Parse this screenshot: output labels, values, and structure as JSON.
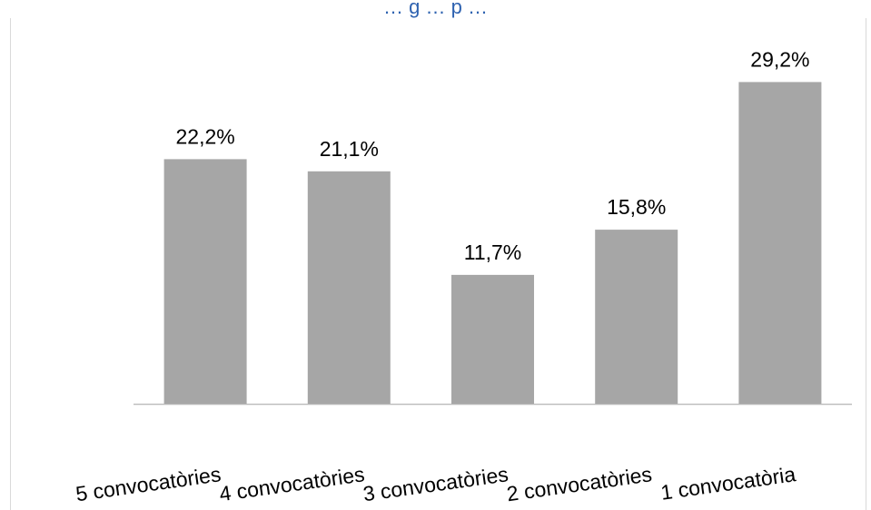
{
  "chart_data": {
    "type": "bar",
    "title": "",
    "title_partial": "… g … p …",
    "xlabel": "",
    "ylabel": "",
    "categories": [
      "5 convocatòries",
      "4 convocatòries",
      "3 convocatòries",
      "2 convocatòries",
      "1 convocatòria"
    ],
    "values": [
      22.2,
      21.1,
      11.7,
      15.8,
      29.2
    ],
    "data_labels": [
      "22,2%",
      "21,1%",
      "11,7%",
      "15,8%",
      "29,2%"
    ],
    "ylim": [
      0,
      35
    ],
    "grid": false,
    "legend": "none",
    "tick_label_rotation_deg": -8,
    "colors": {
      "bar": "#a6a6a6",
      "title": "#2e62b0",
      "axis": "#bfbfbf"
    }
  }
}
